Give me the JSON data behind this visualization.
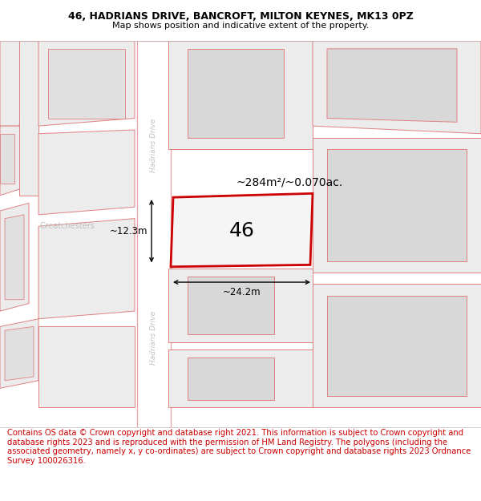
{
  "title": "46, HADRIANS DRIVE, BANCROFT, MILTON KEYNES, MK13 0PZ",
  "subtitle": "Map shows position and indicative extent of the property.",
  "footer": "Contains OS data © Crown copyright and database right 2021. This information is subject to Crown copyright and database rights 2023 and is reproduced with the permission of HM Land Registry. The polygons (including the associated geometry, namely x, y co-ordinates) are subject to Crown copyright and database rights 2023 Ordnance Survey 100026316.",
  "title_fontsize": 9.0,
  "subtitle_fontsize": 8.0,
  "footer_fontsize": 7.2,
  "map_bg": "#ffffff",
  "road_color": "#ffffff",
  "road_edge_color": "#e8a0a0",
  "plot_fill": "#ececec",
  "plot_outline_color": "#e08080",
  "highlight_fill": "#f5f5f5",
  "highlight_outline": "#cc0000",
  "street_label_color": "#c0c0c0",
  "area_label": "~284m²/~0.070ac.",
  "number_label": "46",
  "dim_width": "~24.2m",
  "dim_height": "~12.3m",
  "street_name": "Hadrians Drive",
  "left_label": "Greatchesters"
}
